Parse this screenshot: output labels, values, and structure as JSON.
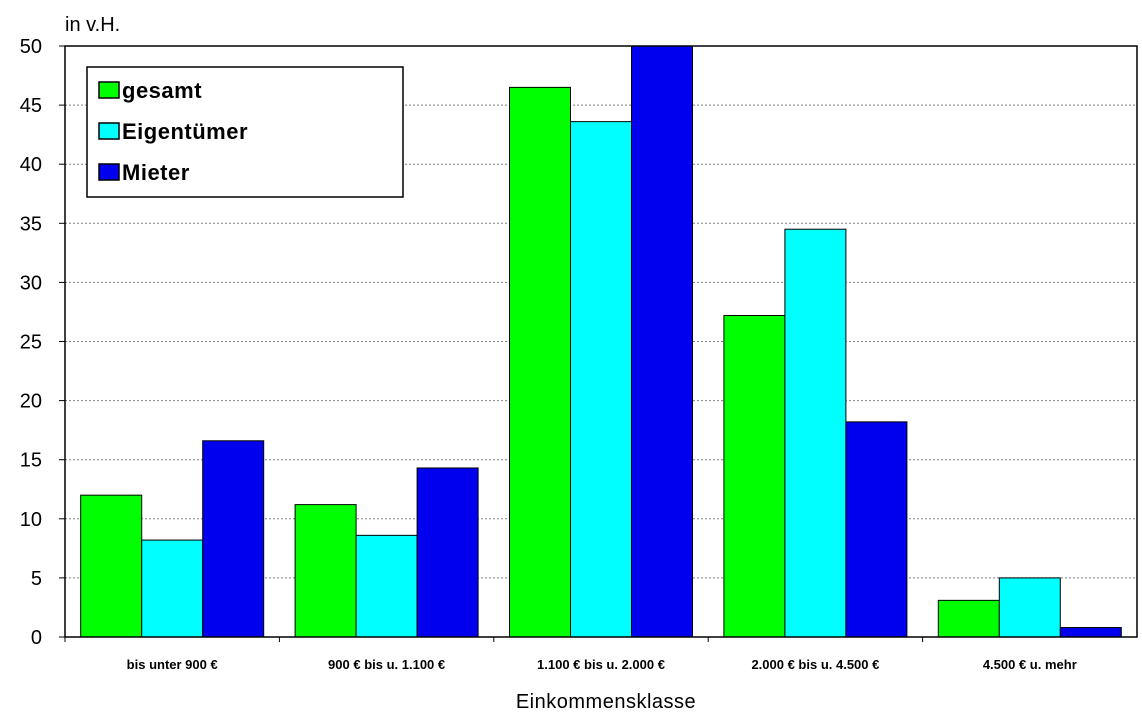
{
  "chart_data": {
    "type": "bar",
    "unit_label": "in v.H.",
    "xlabel": "Einkommensklasse",
    "categories": [
      "bis unter 900 €",
      "900 € bis u. 1.100 €",
      "1.100 € bis u. 2.000 €",
      "2.000 € bis u. 4.500 €",
      "4.500 € u. mehr"
    ],
    "series": [
      {
        "name": "gesamt",
        "color": "#00ff00",
        "values": [
          12.0,
          11.2,
          46.5,
          27.2,
          3.1
        ]
      },
      {
        "name": "Eigentümer",
        "color": "#00ffff",
        "values": [
          8.2,
          8.6,
          43.6,
          34.5,
          5.0
        ]
      },
      {
        "name": "Mieter",
        "color": "#0000ee",
        "values": [
          16.6,
          14.3,
          50.0,
          18.2,
          0.8
        ]
      }
    ],
    "ylim": [
      0,
      50
    ],
    "yticks": [
      "0",
      "5",
      "10",
      "15",
      "20",
      "25",
      "30",
      "35",
      "40",
      "45",
      "50"
    ],
    "grid": true,
    "legend_position": "top-left"
  }
}
